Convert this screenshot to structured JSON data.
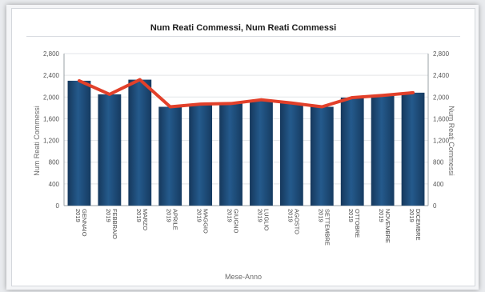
{
  "chart_data": {
    "type": "bar",
    "title": "Num Reati Commessi, Num Reati Commessi",
    "xlabel": "Mese-Anno",
    "ylabel": "Num Reati Commessi",
    "ylabel_right": "Num Reati Commessi",
    "ylim": [
      0,
      2800
    ],
    "yticks": [
      "0",
      "400",
      "800",
      "1,200",
      "1,600",
      "2,000",
      "2,400",
      "2,800"
    ],
    "ytick_values": [
      0,
      400,
      800,
      1200,
      1600,
      2000,
      2400,
      2800
    ],
    "categories": [
      [
        "GENNAIO",
        "2019"
      ],
      [
        "FEBBRAIO",
        "2019"
      ],
      [
        "MARZO",
        "2019"
      ],
      [
        "APRILE",
        "2019"
      ],
      [
        "MAGGIO",
        "2019"
      ],
      [
        "GIUGNO",
        "2019"
      ],
      [
        "LUGLIO",
        "2019"
      ],
      [
        "AGOSTO",
        "2019"
      ],
      [
        "SETTEMBRE",
        "2019"
      ],
      [
        "OTTOBRE",
        "2019"
      ],
      [
        "NOVEMBRE",
        "2019"
      ],
      [
        "DICEMBRE",
        "2019"
      ]
    ],
    "series": [
      {
        "kind": "bar",
        "color": "#1f4e7a",
        "values": [
          2300,
          2050,
          2320,
          1820,
          1870,
          1880,
          1950,
          1890,
          1820,
          1990,
          2030,
          2080
        ]
      },
      {
        "kind": "line",
        "color": "#e2402a",
        "values": [
          2300,
          2050,
          2320,
          1820,
          1870,
          1880,
          1950,
          1890,
          1820,
          1990,
          2030,
          2080
        ]
      }
    ],
    "grid": true
  }
}
